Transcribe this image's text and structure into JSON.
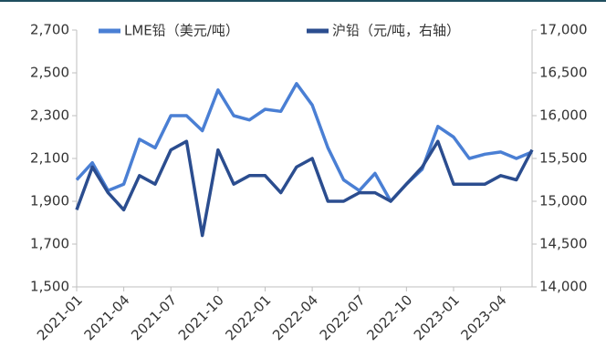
{
  "chart_data": {
    "type": "line",
    "categories": [
      "2021-01",
      null,
      null,
      "2021-04",
      null,
      null,
      "2021-07",
      null,
      null,
      "2021-10",
      null,
      null,
      "2022-01",
      null,
      null,
      "2022-04",
      null,
      null,
      "2022-07",
      null,
      null,
      "2022-10",
      null,
      null,
      "2023-01",
      null,
      null,
      "2023-04",
      null,
      null
    ],
    "series": [
      {
        "name": "LME铅（美元/吨）",
        "color": "#4a7fd4",
        "values": [
          2000,
          2080,
          1950,
          1980,
          2190,
          2150,
          2300,
          2300,
          2230,
          2420,
          2300,
          2280,
          2330,
          2320,
          2450,
          2350,
          2150,
          2000,
          1950,
          2030,
          1900,
          1980,
          2050,
          2250,
          2200,
          2100,
          2120,
          2130,
          2100,
          2130
        ]
      },
      {
        "name": "沪铅（元/吨，右轴）",
        "color": "#2b4d8f",
        "axis": "y2",
        "values": [
          14900,
          15400,
          15100,
          14900,
          15300,
          15200,
          15600,
          15700,
          14600,
          15600,
          15200,
          15300,
          15300,
          15100,
          15400,
          15500,
          15000,
          15000,
          15100,
          15100,
          15000,
          15200,
          15400,
          15700,
          15200,
          15200,
          15200,
          15300,
          15250,
          15600
        ]
      }
    ],
    "ylim": [
      1500,
      2700
    ],
    "yticks": [
      {
        "value": 1500,
        "label": "1,500"
      },
      {
        "value": 1700,
        "label": "1,700"
      },
      {
        "value": 1900,
        "label": "1,900"
      },
      {
        "value": 2100,
        "label": "2,100"
      },
      {
        "value": 2300,
        "label": "2,300"
      },
      {
        "value": 2500,
        "label": "2,500"
      },
      {
        "value": 2700,
        "label": "2,700"
      }
    ],
    "y2lim": [
      14000,
      17000
    ],
    "y2ticks": [
      {
        "value": 14000,
        "label": "14,000"
      },
      {
        "value": 14500,
        "label": "14,500"
      },
      {
        "value": 15000,
        "label": "15,000"
      },
      {
        "value": 15500,
        "label": "15,500"
      },
      {
        "value": 16000,
        "label": "16,000"
      },
      {
        "value": 16500,
        "label": "16,500"
      },
      {
        "value": 17000,
        "label": "17,000"
      }
    ],
    "legend": "top"
  }
}
